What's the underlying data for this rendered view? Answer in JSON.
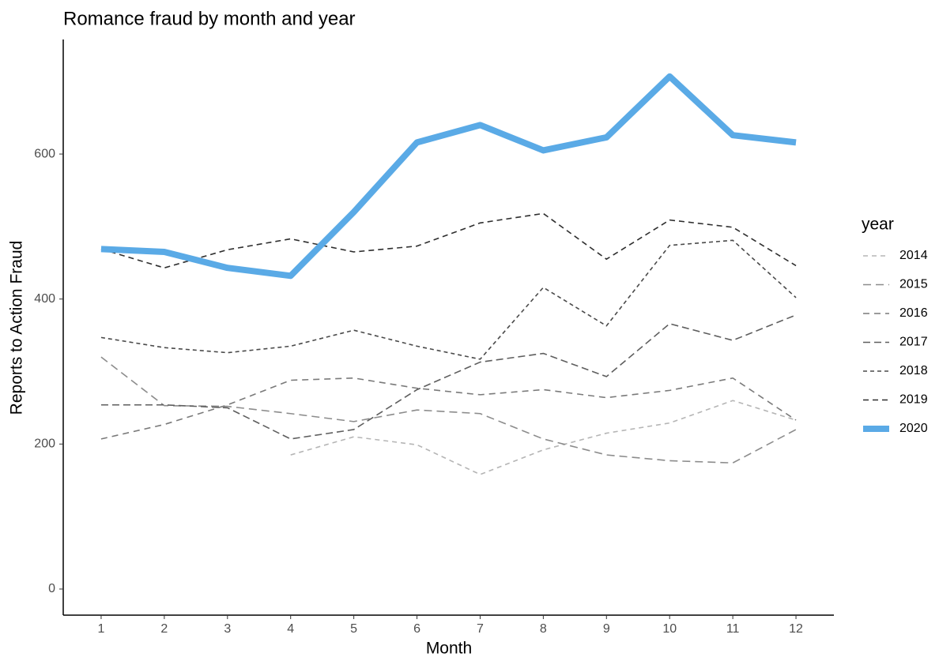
{
  "chart_data": {
    "type": "line",
    "title": "Romance fraud by month and year",
    "x_label": "Month",
    "y_label": "Reports to Action Fraud",
    "legend_title": "year",
    "legend": "right",
    "x": [
      1,
      2,
      3,
      4,
      5,
      6,
      7,
      8,
      9,
      10,
      11,
      12
    ],
    "xlim": [
      0.4,
      12.6
    ],
    "xticks": [
      1,
      2,
      3,
      4,
      5,
      6,
      7,
      8,
      9,
      10,
      11,
      12
    ],
    "ylim": [
      -36,
      758
    ],
    "yticks": [
      0,
      200,
      400,
      600
    ],
    "grid": false,
    "series": [
      {
        "name": "2014",
        "color": "#b5b5b5",
        "style": "dashed",
        "values": [
          null,
          null,
          null,
          185,
          210,
          199,
          158,
          192,
          215,
          229,
          260,
          233
        ]
      },
      {
        "name": "2015",
        "color": "#8c8c8c",
        "style": "dashed",
        "values": [
          320,
          253,
          252,
          242,
          231,
          247,
          242,
          207,
          185,
          177,
          174,
          220
        ]
      },
      {
        "name": "2016",
        "color": "#7a7a7a",
        "style": "dashed",
        "values": [
          207,
          227,
          254,
          288,
          291,
          277,
          268,
          275,
          264,
          274,
          291,
          233
        ]
      },
      {
        "name": "2017",
        "color": "#5e5e5e",
        "style": "dashed",
        "values": [
          254,
          254,
          250,
          207,
          220,
          275,
          313,
          325,
          293,
          366,
          343,
          378
        ]
      },
      {
        "name": "2018",
        "color": "#4a4a4a",
        "style": "dashed",
        "values": [
          347,
          333,
          326,
          335,
          357,
          335,
          317,
          416,
          363,
          474,
          481,
          402
        ]
      },
      {
        "name": "2019",
        "color": "#2e2e2e",
        "style": "dashed",
        "values": [
          469,
          443,
          468,
          483,
          465,
          473,
          505,
          518,
          455,
          509,
          499,
          446
        ]
      },
      {
        "name": "2020",
        "color": "#5aaae6",
        "style": "solid",
        "values": [
          469,
          465,
          443,
          432,
          520,
          616,
          640,
          605,
          623,
          707,
          626,
          616
        ]
      }
    ]
  }
}
